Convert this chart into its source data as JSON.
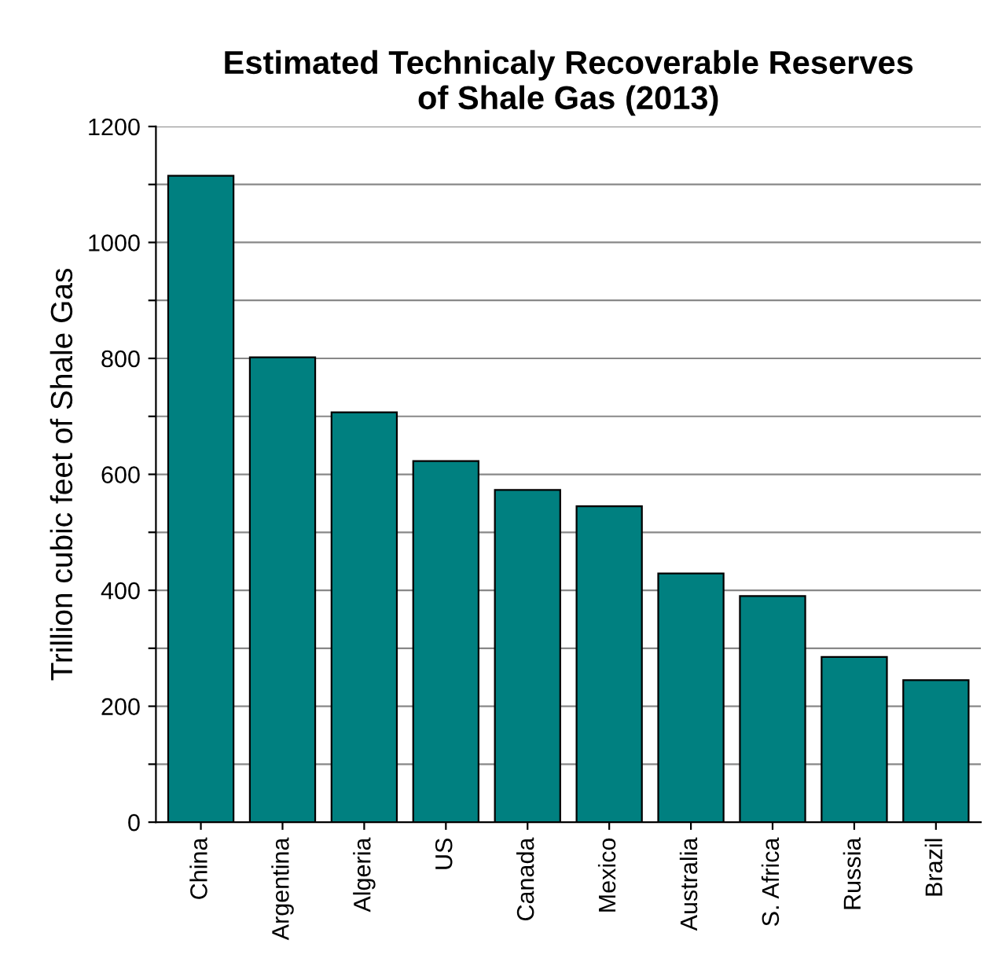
{
  "chart_data": {
    "type": "bar",
    "title": "Estimated Technicaly Recoverable Reserves\nof Shale Gas (2013)",
    "ylabel": "Trillion cubic feet of Shale Gas",
    "categories": [
      "China",
      "Argentina",
      "Algeria",
      "US",
      "Canada",
      "Mexico",
      "Australia",
      "S. Africa",
      "Russia",
      "Brazil"
    ],
    "values": [
      1115,
      802,
      707,
      623,
      573,
      545,
      429,
      390,
      285,
      245
    ],
    "color": "#008080",
    "ylim": [
      0,
      1200
    ],
    "yticks": [
      0,
      {
        "value": 100,
        "label": null
      },
      200,
      {
        "value": 300,
        "label": null
      },
      400,
      {
        "value": 500,
        "label": null
      },
      600,
      {
        "value": 700,
        "label": null
      },
      800,
      {
        "value": 900,
        "label": null
      },
      1000,
      {
        "value": 1100,
        "label": null
      },
      1200
    ],
    "grid": "y"
  }
}
